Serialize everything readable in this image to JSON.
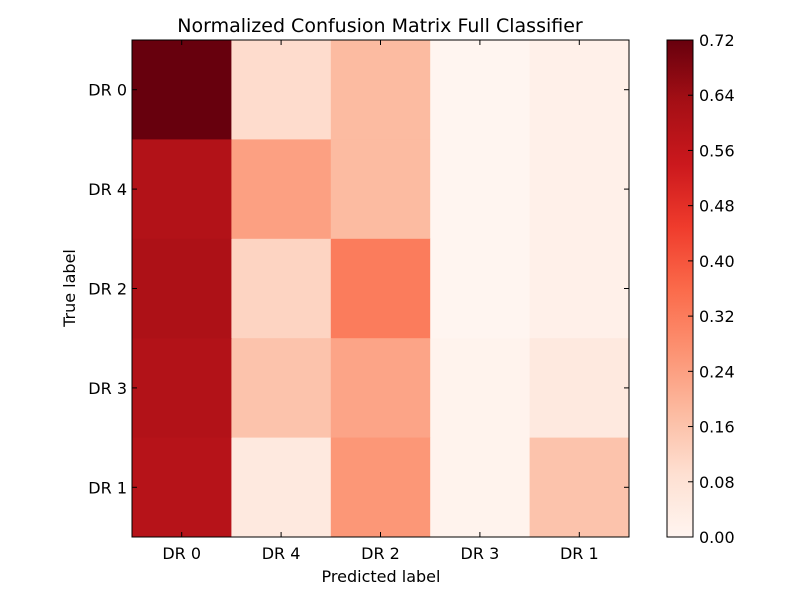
{
  "chart_data": {
    "type": "heatmap",
    "title": "Normalized Confusion Matrix Full Classifier",
    "xlabel": "Predicted label",
    "ylabel": "True label",
    "x_categories": [
      "DR 0",
      "DR 4",
      "DR 2",
      "DR 3",
      "DR 1"
    ],
    "y_categories": [
      "DR 0",
      "DR 4",
      "DR 2",
      "DR 3",
      "DR 1"
    ],
    "values": [
      [
        0.72,
        0.1,
        0.18,
        0.0,
        0.02
      ],
      [
        0.6,
        0.24,
        0.18,
        0.0,
        0.02
      ],
      [
        0.61,
        0.12,
        0.32,
        0.0,
        0.02
      ],
      [
        0.6,
        0.16,
        0.23,
        0.01,
        0.05
      ],
      [
        0.59,
        0.05,
        0.26,
        0.01,
        0.16
      ]
    ],
    "colorbar": {
      "colormap": "Reds",
      "range": [
        0.0,
        0.72
      ],
      "ticks": [
        "0.00",
        "0.08",
        "0.16",
        "0.24",
        "0.32",
        "0.40",
        "0.48",
        "0.56",
        "0.64",
        "0.72"
      ]
    },
    "grid": false
  }
}
